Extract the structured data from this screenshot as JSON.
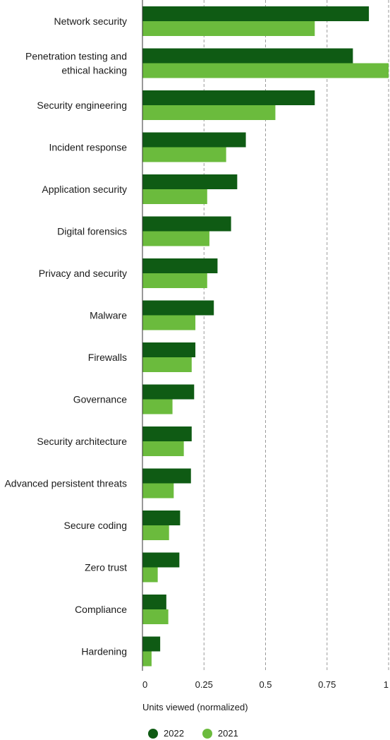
{
  "chart_data": {
    "type": "bar",
    "orientation": "horizontal",
    "categories": [
      "Network security",
      "Penetration testing and ethical hacking",
      "Security engineering",
      "Incident response",
      "Application security",
      "Digital forensics",
      "Privacy and security",
      "Malware",
      "Firewalls",
      "Governance",
      "Security architecture",
      "Advanced persistent threats",
      "Secure coding",
      "Zero trust",
      "Compliance",
      "Hardening"
    ],
    "category_lines": [
      [
        "Network security"
      ],
      [
        "Penetration testing and",
        "ethical hacking"
      ],
      [
        "Security engineering"
      ],
      [
        "Incident response"
      ],
      [
        "Application security"
      ],
      [
        "Digital forensics"
      ],
      [
        "Privacy and security"
      ],
      [
        "Malware"
      ],
      [
        "Firewalls"
      ],
      [
        "Governance"
      ],
      [
        "Security architecture"
      ],
      [
        "Advanced persistent threats"
      ],
      [
        "Secure coding"
      ],
      [
        "Zero trust"
      ],
      [
        "Compliance"
      ],
      [
        "Hardening"
      ]
    ],
    "series": [
      {
        "name": "2022",
        "color": "#0f5b14",
        "values": [
          0.92,
          0.855,
          0.7,
          0.42,
          0.385,
          0.36,
          0.305,
          0.29,
          0.215,
          0.21,
          0.2,
          0.197,
          0.153,
          0.15,
          0.097,
          0.072
        ]
      },
      {
        "name": "2021",
        "color": "#6bbb3d",
        "values": [
          0.7,
          1.0,
          0.54,
          0.34,
          0.263,
          0.272,
          0.263,
          0.215,
          0.2,
          0.122,
          0.168,
          0.127,
          0.108,
          0.062,
          0.105,
          0.037
        ]
      }
    ],
    "xlabel": "Units viewed (normalized)",
    "ylabel": "",
    "xlim": [
      0,
      1
    ],
    "xticks": [
      0,
      0.25,
      0.5,
      0.75,
      1
    ],
    "xtick_labels": [
      "0",
      "0.25",
      "0.5",
      "0.75",
      "1"
    ],
    "grid": "vertical dashed",
    "legend_position": "bottom-left"
  }
}
